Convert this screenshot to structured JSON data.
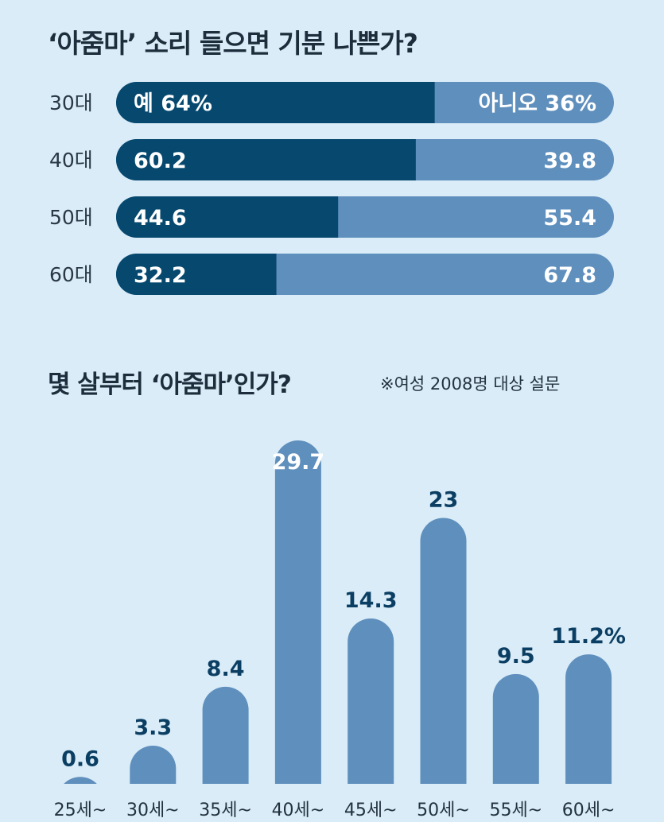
{
  "chart_data": [
    {
      "type": "bar",
      "stacked": true,
      "orientation": "horizontal",
      "title": "‘아줌마’ 소리 들으면 기분 나쁜가?",
      "categories": [
        "30대",
        "40대",
        "50대",
        "60대"
      ],
      "series": [
        {
          "name": "예",
          "values": [
            64,
            60.2,
            44.6,
            32.2
          ],
          "labels": [
            "예 64%",
            "60.2",
            "44.6",
            "32.2"
          ],
          "color": "#06486e"
        },
        {
          "name": "아니오",
          "values": [
            36,
            39.8,
            55.4,
            67.8
          ],
          "labels": [
            "아니오 36%",
            "39.8",
            "55.4",
            "67.8"
          ],
          "color": "#5f8fbd"
        }
      ],
      "xlim": [
        0,
        100
      ]
    },
    {
      "type": "bar",
      "title": "몇 살부터 ‘아줌마’인가?",
      "note": "※여성 2008명 대상 설문",
      "categories": [
        "25세~",
        "30세~",
        "35세~",
        "40세~",
        "45세~",
        "50세~",
        "55세~",
        "60세~"
      ],
      "values": [
        0.6,
        3.3,
        8.4,
        29.7,
        14.3,
        23,
        9.5,
        11.2
      ],
      "value_labels": [
        "0.6",
        "3.3",
        "8.4",
        "29.7",
        "14.3",
        "23",
        "9.5",
        "11.2%"
      ],
      "ylim": [
        0,
        29.7
      ],
      "color": "#5f8fbd",
      "label_color": "#0b3e63"
    }
  ]
}
